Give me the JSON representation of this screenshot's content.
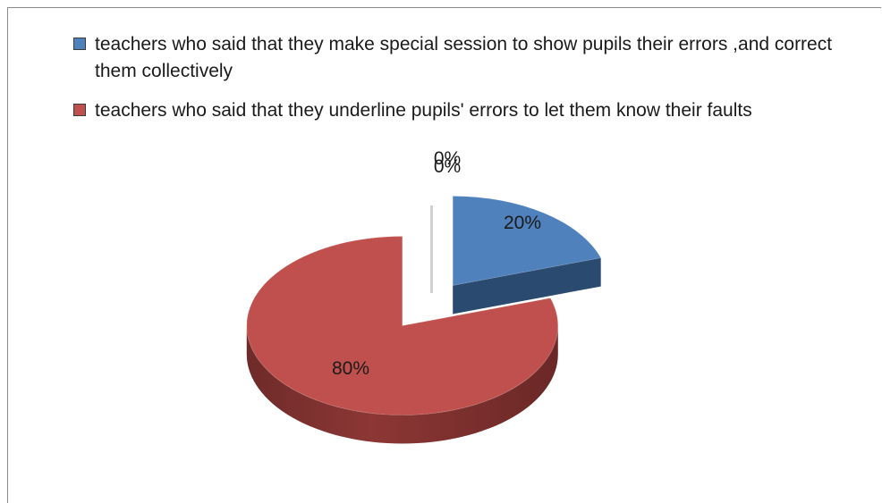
{
  "chart_data": {
    "type": "pie",
    "style": "3d-exploded",
    "legend_placement": "top",
    "series": [
      {
        "name": "teachers who said that they make special session to show pupils their errors ,and correct them collectively",
        "value": 20,
        "label": "20%",
        "color": "#4f81bd"
      },
      {
        "name": "teachers who said that they underline pupils' errors to let them know their faults",
        "value": 80,
        "label": "80%",
        "color": "#c0504d"
      },
      {
        "name": "",
        "value": 0,
        "label": "0%",
        "color": "#9bbb59"
      },
      {
        "name": "",
        "value": 0,
        "label": "0%",
        "color": "#8064a2"
      }
    ]
  }
}
